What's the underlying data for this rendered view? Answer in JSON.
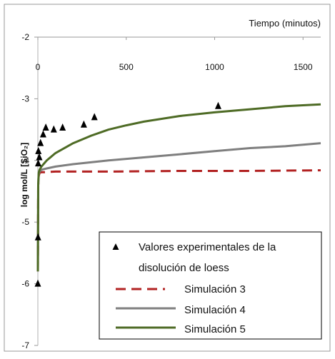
{
  "chart_data": {
    "type": "line",
    "xlabel": "Tiempo (minutos)",
    "ylabel": "log mol/L [SiO₂]",
    "xlim": [
      0,
      1600
    ],
    "ylim": [
      -7,
      -2
    ],
    "x_ticks": [
      0,
      500,
      1000,
      1500
    ],
    "y_ticks": [
      -2,
      -3,
      -4,
      -5,
      -6,
      -7
    ],
    "x_axis_position": "top",
    "grid": false,
    "legend_position": "bottom-right",
    "colors": {
      "experimental": "#000000",
      "sim3": "#b22222",
      "sim4": "#7f7f7f",
      "sim5": "#4e6b25",
      "frame": "#999999"
    },
    "series": [
      {
        "name": "Valores experimentales de la disolución de loess",
        "style": "triangle-markers",
        "points": [
          {
            "x": 0,
            "y": -6.0
          },
          {
            "x": 1,
            "y": -5.25
          },
          {
            "x": 2,
            "y": -4.05
          },
          {
            "x": 3,
            "y": -3.85
          },
          {
            "x": 8,
            "y": -3.95
          },
          {
            "x": 15,
            "y": -3.72
          },
          {
            "x": 30,
            "y": -3.58
          },
          {
            "x": 45,
            "y": -3.47
          },
          {
            "x": 90,
            "y": -3.5
          },
          {
            "x": 140,
            "y": -3.47
          },
          {
            "x": 260,
            "y": -3.42
          },
          {
            "x": 320,
            "y": -3.3
          },
          {
            "x": 1020,
            "y": -3.12
          }
        ]
      },
      {
        "name": "Simulación 3",
        "style": "dashed",
        "x": [
          0,
          2,
          5,
          10,
          20,
          40,
          100,
          200,
          400,
          800,
          1200,
          1600
        ],
        "y": [
          -5.8,
          -4.4,
          -4.25,
          -4.2,
          -4.19,
          -4.19,
          -4.18,
          -4.18,
          -4.18,
          -4.17,
          -4.17,
          -4.16
        ]
      },
      {
        "name": "Simulación 4",
        "style": "solid",
        "x": [
          0,
          2,
          5,
          10,
          20,
          50,
          100,
          200,
          300,
          400,
          600,
          800,
          1000,
          1200,
          1400,
          1600
        ],
        "y": [
          -5.8,
          -4.4,
          -4.22,
          -4.18,
          -4.15,
          -4.13,
          -4.1,
          -4.06,
          -4.03,
          -4.0,
          -3.95,
          -3.9,
          -3.85,
          -3.8,
          -3.77,
          -3.72
        ]
      },
      {
        "name": "Simulación 5",
        "style": "solid",
        "x": [
          0,
          2,
          5,
          10,
          20,
          50,
          100,
          200,
          300,
          400,
          500,
          600,
          800,
          1000,
          1200,
          1400,
          1600
        ],
        "y": [
          -5.8,
          -4.4,
          -4.2,
          -4.15,
          -4.1,
          -4.0,
          -3.88,
          -3.72,
          -3.6,
          -3.5,
          -3.43,
          -3.37,
          -3.28,
          -3.22,
          -3.17,
          -3.12,
          -3.09
        ]
      }
    ],
    "legend": [
      {
        "label_line1": "Valores experimentales de la",
        "label_line2": "disolución de loess"
      },
      {
        "label_line1": "Simulación 3"
      },
      {
        "label_line1": "Simulación 4"
      },
      {
        "label_line1": "Simulación 5"
      }
    ]
  }
}
